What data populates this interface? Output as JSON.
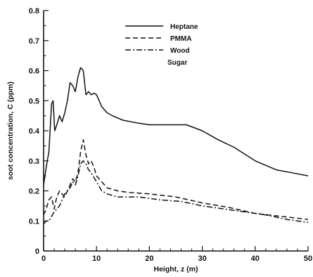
{
  "chart_data": {
    "type": "line",
    "xlabel": "Height, z (m)",
    "ylabel": "soot concentration, C (ppm)",
    "xlim": [
      0,
      50
    ],
    "ylim": [
      0,
      0.8
    ],
    "xticks": [
      "0",
      "10",
      "20",
      "30",
      "40",
      "50"
    ],
    "yticks": [
      "0",
      "0.1",
      "0.2",
      "0.3",
      "0.4",
      "0.5",
      "0.6",
      "0.7",
      "0.8"
    ],
    "grid": false,
    "legend_position": "top-center",
    "series": [
      {
        "name": "Heptane",
        "style": "solid",
        "x": [
          0,
          0.5,
          1,
          1.5,
          1.8,
          2.1,
          2.5,
          3,
          3.5,
          4,
          4.5,
          5,
          5.5,
          6,
          6.5,
          7,
          7.5,
          8,
          8.5,
          9,
          9.5,
          10,
          11,
          12,
          13,
          15,
          18,
          20,
          22,
          25,
          27,
          30,
          33,
          36,
          40,
          44,
          47,
          50
        ],
        "y": [
          0.22,
          0.28,
          0.33,
          0.49,
          0.5,
          0.4,
          0.42,
          0.45,
          0.43,
          0.46,
          0.5,
          0.56,
          0.55,
          0.53,
          0.58,
          0.61,
          0.6,
          0.52,
          0.53,
          0.52,
          0.525,
          0.52,
          0.48,
          0.46,
          0.45,
          0.435,
          0.425,
          0.42,
          0.42,
          0.42,
          0.42,
          0.4,
          0.37,
          0.345,
          0.3,
          0.27,
          0.26,
          0.25
        ]
      },
      {
        "name": "PMMA",
        "style": "dashed",
        "x": [
          0,
          0.5,
          1,
          1.5,
          2,
          2.5,
          3,
          4,
          5,
          5.5,
          6,
          6.5,
          7,
          7.5,
          8,
          8.5,
          9,
          9.5,
          10,
          11,
          12,
          14,
          16,
          20,
          25,
          30,
          35,
          40,
          45,
          50
        ],
        "y": [
          0.12,
          0.14,
          0.17,
          0.18,
          0.14,
          0.18,
          0.2,
          0.18,
          0.22,
          0.24,
          0.23,
          0.26,
          0.33,
          0.37,
          0.32,
          0.29,
          0.3,
          0.28,
          0.25,
          0.23,
          0.21,
          0.2,
          0.195,
          0.19,
          0.18,
          0.16,
          0.145,
          0.125,
          0.115,
          0.105
        ]
      },
      {
        "name": "Wood",
        "style": "dashdot",
        "x": [
          0,
          0.5,
          1,
          2,
          3,
          4,
          5,
          5.5,
          6,
          6.5,
          7,
          7.5,
          8,
          8.5,
          9,
          10,
          11,
          12,
          14,
          18,
          22,
          26,
          30,
          34,
          38,
          42,
          46,
          50
        ],
        "y": [
          0.09,
          0.1,
          0.1,
          0.13,
          0.15,
          0.19,
          0.21,
          0.23,
          0.22,
          0.25,
          0.29,
          0.3,
          0.29,
          0.27,
          0.26,
          0.23,
          0.2,
          0.19,
          0.18,
          0.18,
          0.17,
          0.165,
          0.15,
          0.14,
          0.13,
          0.12,
          0.105,
          0.095
        ]
      },
      {
        "name": "Sugar",
        "style": "none",
        "x": [],
        "y": []
      }
    ]
  }
}
